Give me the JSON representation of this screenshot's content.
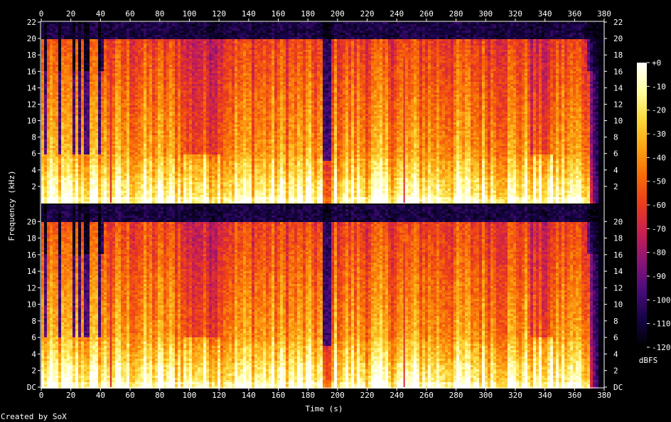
{
  "chart_data": {
    "type": "heatmap",
    "title": "",
    "xlabel": "Time (s)",
    "ylabel": "Frequency (kHz)",
    "x_ticks": [
      "0",
      "20",
      "40",
      "60",
      "80",
      "100",
      "120",
      "140",
      "160",
      "180",
      "200",
      "220",
      "240",
      "260",
      "280",
      "300",
      "320",
      "340",
      "360",
      "380"
    ],
    "xlim": [
      0,
      380
    ],
    "ylim_khz": [
      0,
      22
    ],
    "y_ticks_top": [
      "2",
      "4",
      "6",
      "8",
      "10",
      "12",
      "14",
      "16",
      "18",
      "20",
      "22"
    ],
    "y_ticks_bottom": [
      "DC",
      "2",
      "4",
      "6",
      "8",
      "10",
      "12",
      "14",
      "16",
      "18",
      "20"
    ],
    "channels": 2,
    "colorbar": {
      "label": "dBFS",
      "ticks": [
        "+0",
        "-10",
        "-20",
        "-30",
        "-40",
        "-50",
        "-60",
        "-70",
        "-80",
        "-90",
        "-100",
        "-110",
        "-120"
      ],
      "range": [
        -120,
        0
      ],
      "colors": [
        "#000000",
        "#160346",
        "#4a0c7a",
        "#8a1478",
        "#c81e52",
        "#ea3a1e",
        "#f86a08",
        "#fca212",
        "#fcd83a",
        "#fffea0",
        "#ffffff"
      ]
    },
    "features": {
      "quiet_gap_s": [
        190,
        195
      ],
      "transient_clicks_s": [
        47,
        245
      ],
      "content_end_s": 368,
      "upper_cutoff_khz_intro": 16,
      "main_band_max_khz": 20
    },
    "footer": "Created by SoX"
  }
}
